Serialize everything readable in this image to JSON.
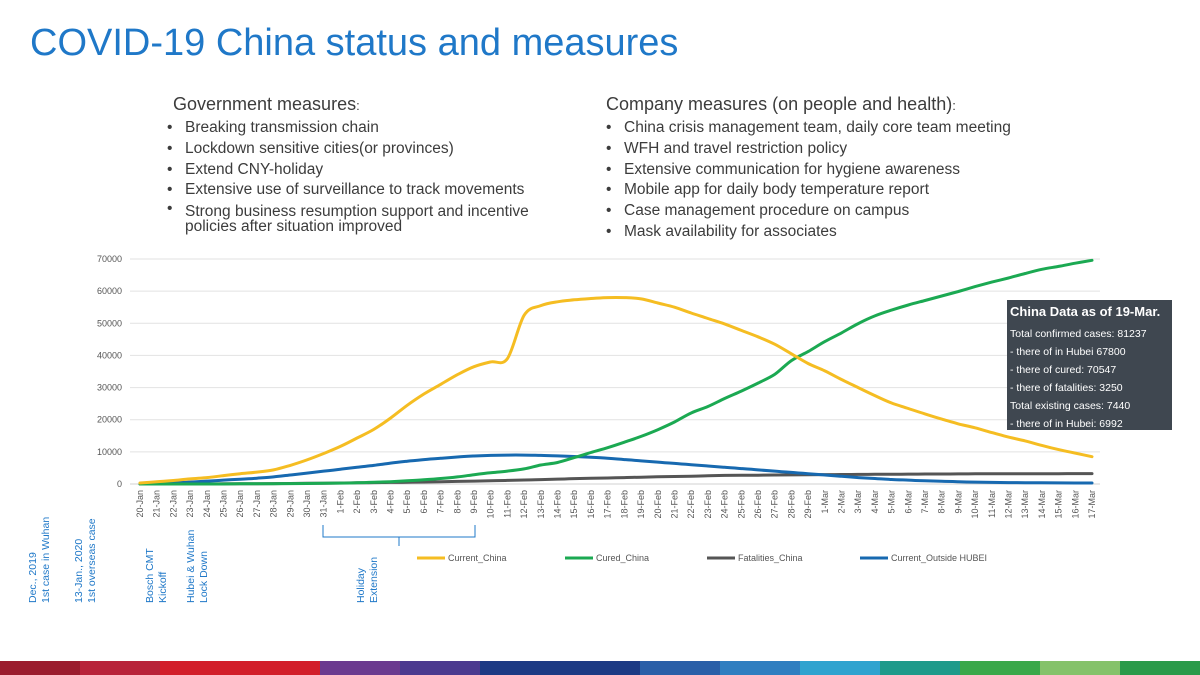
{
  "page": {
    "title": "COVID-19 China status and measures"
  },
  "government": {
    "heading": "Government measures",
    "colon": ":",
    "items": [
      "Breaking transmission chain",
      "Lockdown sensitive cities(or provinces)",
      "Extend CNY-holiday",
      "Extensive use of surveillance to track movements",
      "Strong business resumption support and incentive policies after situation improved"
    ]
  },
  "company": {
    "heading": "Company measures (on people and health)",
    "colon": ":",
    "items": [
      "China crisis management team, daily core team meeting",
      "WFH and travel restriction policy",
      "Extensive communication for hygiene awareness",
      "Mobile app for daily body temperature report",
      "Case management procedure on campus",
      "Mask availability for associates"
    ]
  },
  "infobox": {
    "title": "China Data as of 19-Mar.",
    "lines": [
      "Total confirmed cases: 81237",
      " - there of in Hubei 67800",
      " - there of cured: 70547",
      " - there of fatalities: 3250",
      "Total existing cases: 7440",
      " - there of in Hubei: 6992"
    ]
  },
  "timeline": {
    "events": [
      {
        "line1": "Dec., 2019",
        "line2": "1st case in Wuhan"
      },
      {
        "line1": "13-Jan., 2020",
        "line2": "1st overseas case"
      },
      {
        "line1": "Bosch CMT",
        "line2": "Kickoff"
      },
      {
        "line1": "Hubei & Wuhan",
        "line2": "Lock Down"
      },
      {
        "line1": "Holiday",
        "line2": "Extension"
      }
    ]
  },
  "colors": {
    "title": "#1f78c8",
    "current_china": "#f5bd22",
    "cured_china": "#1ba952",
    "fatalities_china": "#555555",
    "current_outside_hubei": "#1769b0",
    "annotation": "#1f78c8"
  },
  "stripe_colors": [
    "#9b1c2e",
    "#b8233a",
    "#d21e2a",
    "#d21e2a",
    "#6b3a8f",
    "#4b3a8f",
    "#1c3a84",
    "#1c3a84",
    "#2a5fa8",
    "#2f7ec0",
    "#2fa3cf",
    "#1e9a8a",
    "#3aa84a",
    "#85c26a",
    "#2a9a4a"
  ],
  "chart_data": {
    "type": "line",
    "categories": [
      "20-Jan",
      "21-Jan",
      "22-Jan",
      "23-Jan",
      "24-Jan",
      "25-Jan",
      "26-Jan",
      "27-Jan",
      "28-Jan",
      "29-Jan",
      "30-Jan",
      "31-Jan",
      "1-Feb",
      "2-Feb",
      "3-Feb",
      "4-Feb",
      "5-Feb",
      "6-Feb",
      "7-Feb",
      "8-Feb",
      "9-Feb",
      "10-Feb",
      "11-Feb",
      "12-Feb",
      "13-Feb",
      "14-Feb",
      "15-Feb",
      "16-Feb",
      "17-Feb",
      "18-Feb",
      "19-Feb",
      "20-Feb",
      "21-Feb",
      "22-Feb",
      "23-Feb",
      "24-Feb",
      "25-Feb",
      "26-Feb",
      "27-Feb",
      "28-Feb",
      "29-Feb",
      "1-Mar",
      "2-Mar",
      "3-Mar",
      "4-Mar",
      "5-Mar",
      "6-Mar",
      "7-Mar",
      "8-Mar",
      "9-Mar",
      "10-Mar",
      "11-Mar",
      "12-Mar",
      "13-Mar",
      "14-Mar",
      "15-Mar",
      "16-Mar",
      "17-Mar"
    ],
    "ylim": [
      0,
      70000
    ],
    "yticks": [
      "0",
      "10000",
      "20000",
      "30000",
      "40000",
      "50000",
      "60000",
      "70000"
    ],
    "grid": true,
    "legend_position": "bottom",
    "series": [
      {
        "name": "Current_China",
        "color": "#f5bd22",
        "values": [
          300,
          700,
          1100,
          1600,
          2000,
          2600,
          3200,
          3700,
          4400,
          5800,
          7500,
          9500,
          11700,
          14300,
          17000,
          20500,
          24500,
          28000,
          31000,
          34000,
          36500,
          38000,
          39000,
          52500,
          55500,
          56700,
          57300,
          57700,
          58000,
          58000,
          57600,
          56300,
          55000,
          53200,
          51500,
          49800,
          47800,
          45800,
          43500,
          40500,
          37500,
          35200,
          32500,
          30000,
          27500,
          25200,
          23500,
          21800,
          20200,
          18700,
          17500,
          16000,
          14600,
          13400,
          12000,
          10700,
          9600,
          8500
        ]
      },
      {
        "name": "Cured_China",
        "color": "#1ba952",
        "values": [
          0,
          0,
          0,
          0,
          0,
          0,
          50,
          100,
          100,
          130,
          170,
          220,
          290,
          400,
          550,
          720,
          1000,
          1300,
          1700,
          2200,
          2900,
          3500,
          4000,
          4700,
          5900,
          6700,
          8200,
          9800,
          11300,
          13000,
          14800,
          16900,
          19300,
          22100,
          24100,
          26600,
          28900,
          31400,
          34100,
          38400,
          41200,
          44300,
          47000,
          49900,
          52300,
          54100,
          55700,
          57100,
          58500,
          59900,
          61400,
          62800,
          64100,
          65500,
          66800,
          67700,
          68700,
          69600
        ]
      },
      {
        "name": "Fatalities_China",
        "color": "#555555",
        "values": [
          6,
          9,
          17,
          25,
          41,
          56,
          80,
          106,
          132,
          170,
          213,
          259,
          304,
          361,
          425,
          490,
          563,
          636,
          722,
          811,
          908,
          1016,
          1113,
          1259,
          1380,
          1523,
          1665,
          1770,
          1868,
          2004,
          2118,
          2236,
          2345,
          2442,
          2592,
          2663,
          2715,
          2744,
          2788,
          2835,
          2870,
          2912,
          2943,
          2981,
          3012,
          3042,
          3070,
          3097,
          3119,
          3136,
          3158,
          3169,
          3176,
          3189,
          3199,
          3213,
          3226,
          3237
        ]
      },
      {
        "name": "Current_Outside HUBEI",
        "color": "#1769b0",
        "values": [
          0,
          150,
          350,
          600,
          900,
          1200,
          1500,
          1800,
          2200,
          2800,
          3400,
          4000,
          4600,
          5200,
          5800,
          6500,
          7100,
          7600,
          8000,
          8400,
          8700,
          8900,
          9000,
          9000,
          8900,
          8750,
          8550,
          8300,
          8000,
          7600,
          7200,
          6800,
          6400,
          6000,
          5600,
          5200,
          4800,
          4400,
          4000,
          3600,
          3200,
          2800,
          2400,
          2000,
          1700,
          1400,
          1200,
          1000,
          850,
          700,
          600,
          500,
          450,
          400,
          380,
          350,
          320,
          300
        ]
      }
    ]
  }
}
